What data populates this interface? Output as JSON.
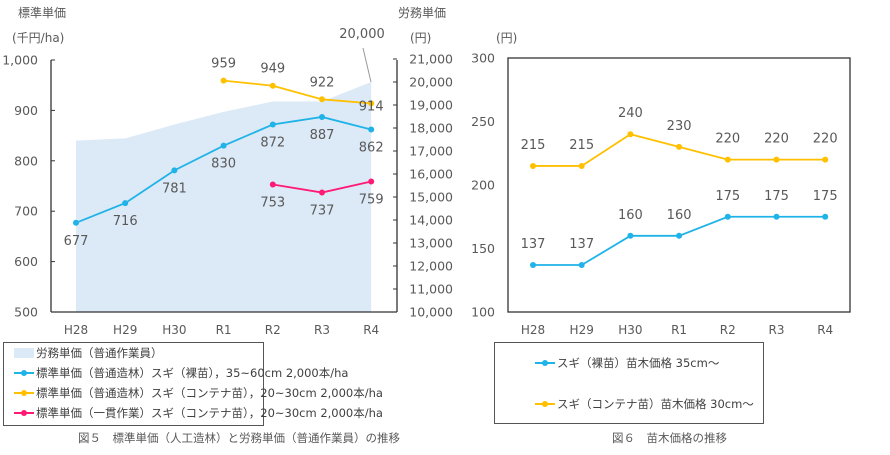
{
  "chart_data": [
    {
      "type": "line",
      "title": "",
      "left_axis": {
        "title": "標準単価",
        "unit": "(千円/ha)",
        "ylim": [
          500,
          1000
        ],
        "ticks": [
          "500",
          "600",
          "700",
          "800",
          "900",
          "1,000"
        ]
      },
      "right_axis": {
        "title": "労務単価",
        "unit": "(円)",
        "ylim": [
          10000,
          21000
        ],
        "ticks": [
          "10,000",
          "11,000",
          "12,000",
          "13,000",
          "14,000",
          "15,000",
          "16,000",
          "17,000",
          "18,000",
          "19,000",
          "20,000",
          "21,000"
        ]
      },
      "categories": [
        "H28",
        "H29",
        "H30",
        "R1",
        "R2",
        "R3",
        "R4"
      ],
      "series": [
        {
          "name": "労務単価（普通作業員）",
          "type": "area",
          "axis": "right",
          "color": "#dce9f6",
          "values": [
            17450,
            17550,
            18150,
            18700,
            19150,
            19150,
            20000
          ],
          "labels": [
            null,
            null,
            null,
            null,
            null,
            null,
            "20,000"
          ]
        },
        {
          "name": "標準単価（普通造林）スギ（裸苗），35~60cm 2,000本/ha",
          "type": "line",
          "axis": "left",
          "color": "#1fb3e8",
          "values": [
            677,
            716,
            781,
            830,
            872,
            887,
            862
          ],
          "labels": [
            "677",
            "716",
            "781",
            "830",
            "872",
            "887",
            "862"
          ]
        },
        {
          "name": "標準単価（普通造林）スギ（コンテナ苗），20~30cm 2,000本/ha",
          "type": "line",
          "axis": "left",
          "color": "#ffc000",
          "values": [
            null,
            null,
            null,
            959,
            949,
            922,
            914
          ],
          "labels": [
            null,
            null,
            null,
            "959",
            "949",
            "922",
            "914"
          ]
        },
        {
          "name": "標準単価（一貫作業）スギ（コンテナ苗），20~30cm 2,000本/ha",
          "type": "line",
          "axis": "left",
          "color": "#ff1a75",
          "values": [
            null,
            null,
            null,
            null,
            753,
            737,
            759
          ],
          "labels": [
            null,
            null,
            null,
            null,
            "753",
            "737",
            "759"
          ]
        }
      ],
      "caption": "図５　標準単価（人工造林）と労務単価（普通作業員）の推移",
      "legend": "bottom"
    },
    {
      "type": "line",
      "title": "",
      "left_axis": {
        "unit": "(円)",
        "ylim": [
          100,
          300
        ],
        "ticks": [
          "100",
          "150",
          "200",
          "250",
          "300"
        ]
      },
      "categories": [
        "H28",
        "H29",
        "H30",
        "R1",
        "R2",
        "R3",
        "R4"
      ],
      "series": [
        {
          "name": "スギ（裸苗）苗木価格 35cm～",
          "color": "#1fb3e8",
          "values": [
            137,
            137,
            160,
            160,
            175,
            175,
            175
          ]
        },
        {
          "name": "スギ（コンテナ苗）苗木価格 30cm～",
          "color": "#ffc000",
          "values": [
            215,
            215,
            240,
            230,
            220,
            220,
            220
          ]
        }
      ],
      "caption": "図６　苗木価格の推移",
      "legend": "bottom"
    }
  ]
}
